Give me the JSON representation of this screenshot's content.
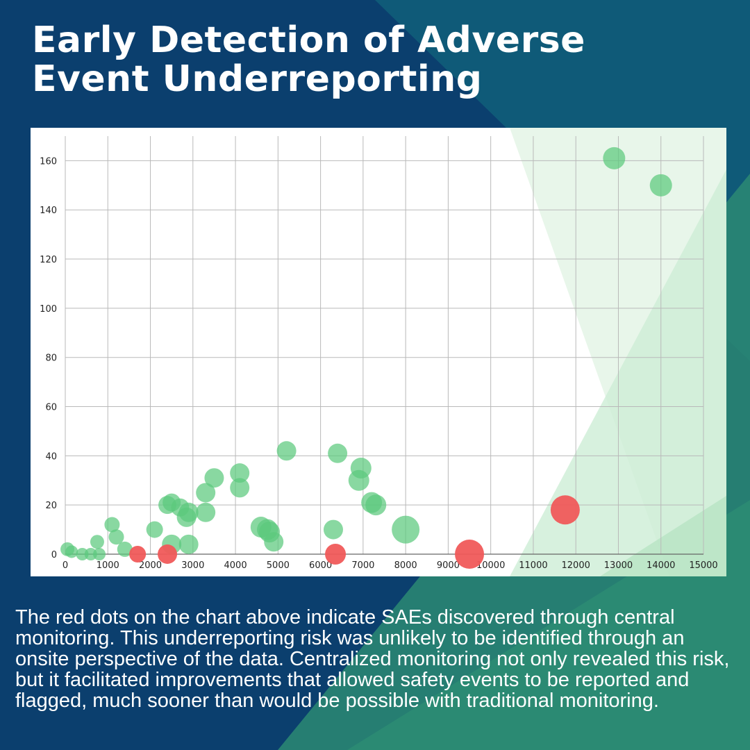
{
  "title_lines": [
    "Early Detection of Adverse",
    "Event Underreporting"
  ],
  "caption": "The red dots on the chart above indicate SAEs discovered through central monitoring. This underreporting risk was unlikely to be identified through an onsite perspective of the data. Centralized monitoring not only revealed this risk, but it facilitated improvements that allowed safety events to be reported and flagged, much sooner than would be possible with traditional monitoring.",
  "colors": {
    "background": "#0b3f6e",
    "teal_band": "#0f5a78",
    "green_band": "#2b8a73",
    "dot_green": "#5cc97d",
    "dot_red": "#f05a5a",
    "overlay_light": "#e8f6ea",
    "overlay_mid": "#cdeed6",
    "overlay_dark": "#b3e2c0"
  },
  "chart_data": {
    "type": "scatter",
    "title": "",
    "xlabel": "",
    "ylabel": "",
    "xlim": [
      0,
      15000
    ],
    "ylim": [
      0,
      170
    ],
    "x_ticks": [
      0,
      1000,
      2000,
      3000,
      4000,
      5000,
      6000,
      7000,
      8000,
      9000,
      10000,
      11000,
      12000,
      13000,
      14000,
      15000
    ],
    "y_ticks": [
      0,
      20,
      40,
      60,
      80,
      100,
      120,
      140,
      160
    ],
    "grid": true,
    "legend": "none",
    "series": [
      {
        "color_key": "dot_green",
        "points": [
          {
            "x": 50,
            "y": 2,
            "r": 10
          },
          {
            "x": 150,
            "y": 1,
            "r": 9
          },
          {
            "x": 400,
            "y": 0,
            "r": 9
          },
          {
            "x": 600,
            "y": 0,
            "r": 9
          },
          {
            "x": 750,
            "y": 5,
            "r": 10
          },
          {
            "x": 800,
            "y": 0,
            "r": 9
          },
          {
            "x": 1100,
            "y": 12,
            "r": 11
          },
          {
            "x": 1200,
            "y": 7,
            "r": 11
          },
          {
            "x": 1400,
            "y": 2,
            "r": 11
          },
          {
            "x": 2100,
            "y": 10,
            "r": 12
          },
          {
            "x": 2400,
            "y": 20,
            "r": 13
          },
          {
            "x": 2500,
            "y": 21,
            "r": 13
          },
          {
            "x": 2500,
            "y": 4,
            "r": 14
          },
          {
            "x": 2700,
            "y": 19,
            "r": 13
          },
          {
            "x": 2850,
            "y": 15,
            "r": 14
          },
          {
            "x": 2900,
            "y": 17,
            "r": 14
          },
          {
            "x": 2900,
            "y": 4,
            "r": 14
          },
          {
            "x": 3300,
            "y": 17,
            "r": 14
          },
          {
            "x": 3300,
            "y": 25,
            "r": 14
          },
          {
            "x": 3500,
            "y": 31,
            "r": 14
          },
          {
            "x": 4100,
            "y": 33,
            "r": 14
          },
          {
            "x": 4100,
            "y": 27,
            "r": 14
          },
          {
            "x": 4600,
            "y": 11,
            "r": 15
          },
          {
            "x": 4750,
            "y": 10,
            "r": 15
          },
          {
            "x": 4800,
            "y": 9,
            "r": 15
          },
          {
            "x": 4900,
            "y": 5,
            "r": 14
          },
          {
            "x": 5200,
            "y": 42,
            "r": 14
          },
          {
            "x": 6300,
            "y": 10,
            "r": 14
          },
          {
            "x": 6400,
            "y": 41,
            "r": 14
          },
          {
            "x": 6900,
            "y": 30,
            "r": 15
          },
          {
            "x": 6950,
            "y": 35,
            "r": 15
          },
          {
            "x": 7200,
            "y": 21,
            "r": 15
          },
          {
            "x": 7300,
            "y": 20,
            "r": 15
          },
          {
            "x": 8000,
            "y": 10,
            "r": 20
          },
          {
            "x": 12900,
            "y": 161,
            "r": 16
          },
          {
            "x": 14000,
            "y": 150,
            "r": 16
          }
        ]
      },
      {
        "color_key": "dot_red",
        "points": [
          {
            "x": 1700,
            "y": 0,
            "r": 12
          },
          {
            "x": 2400,
            "y": 0,
            "r": 14
          },
          {
            "x": 6350,
            "y": 0,
            "r": 15
          },
          {
            "x": 9500,
            "y": 0,
            "r": 21
          },
          {
            "x": 11750,
            "y": 18,
            "r": 21
          }
        ]
      }
    ]
  }
}
